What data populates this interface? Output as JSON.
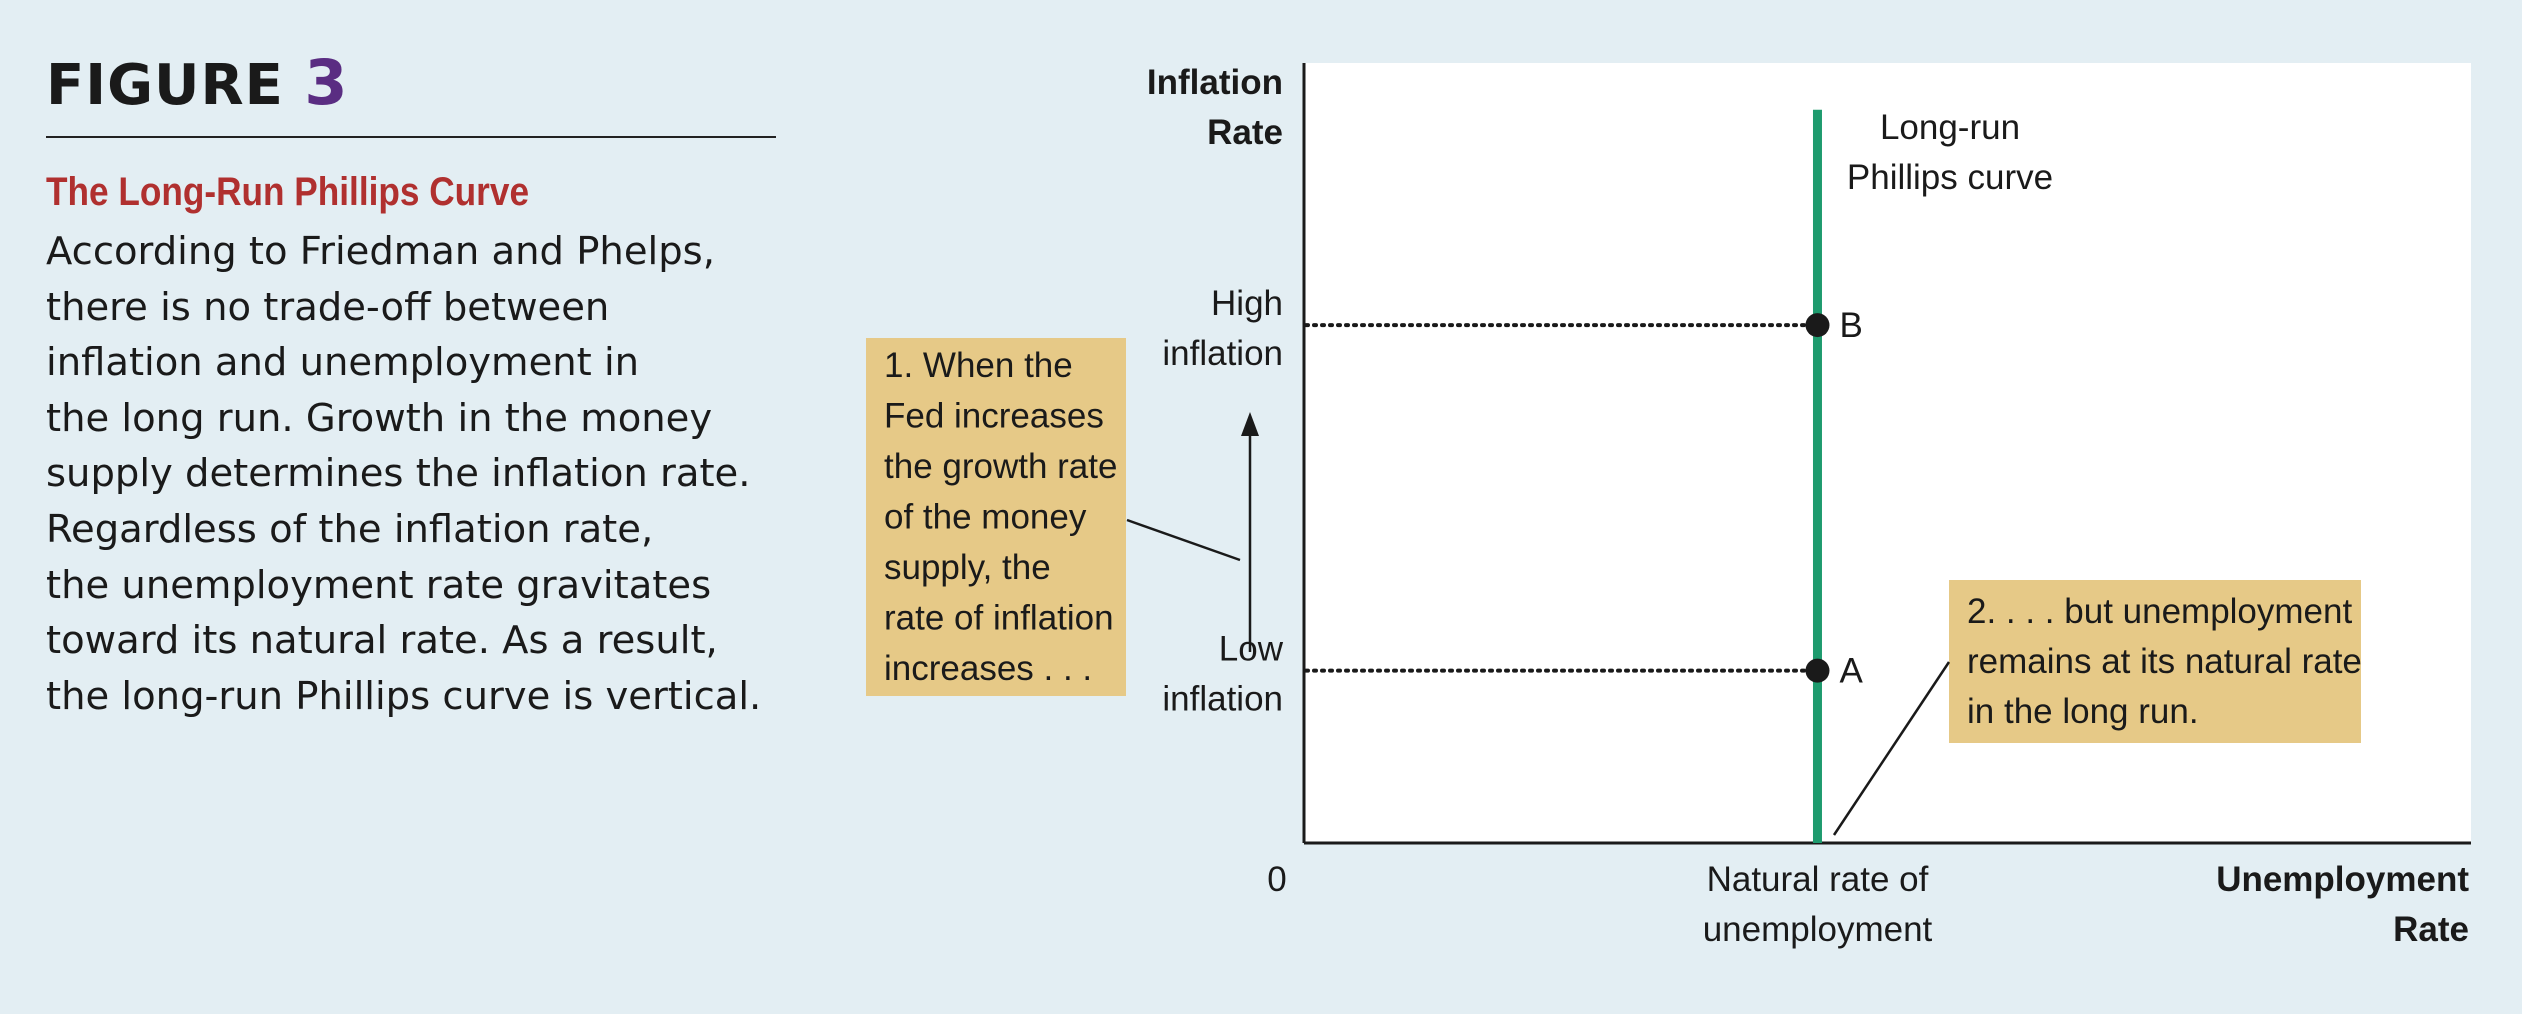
{
  "figure": {
    "prefix": "FIGURE",
    "number": "3"
  },
  "caption": {
    "title": "The Long-Run Phillips Curve",
    "lines": [
      "According to Friedman and Phelps,",
      "there is no trade-off between",
      "inflation and unemployment in",
      "the long run. Growth in the money",
      "supply determines the inflation rate.",
      "Regardless of the inflation rate,",
      "the unemployment rate gravitates",
      "toward its natural rate. As a result,",
      "the long-run Phillips curve is vertical."
    ]
  },
  "colors": {
    "background": "#e3eef3",
    "curve": "#1e9b6e",
    "annotation_box": "#e6c987",
    "title_red": "#b0302f",
    "figure_number": "#5a2d82"
  },
  "chart_data": {
    "type": "line",
    "y_axis_label": [
      "Inflation",
      "Rate"
    ],
    "x_axis_label": [
      "Unemployment",
      "Rate"
    ],
    "origin_label": "0",
    "x_ticks": [
      {
        "lines": [
          "Natural rate of",
          "unemployment"
        ]
      }
    ],
    "y_ticks": [
      {
        "lines": [
          "High",
          "inflation"
        ]
      },
      {
        "lines": [
          "Low",
          "inflation"
        ]
      }
    ],
    "x_range": [
      0,
      1
    ],
    "y_range": [
      0,
      1
    ],
    "natural_rate": 0.44,
    "series": [
      {
        "name": "Long-run Phillips curve",
        "label_lines": [
          "Long-run",
          "Phillips curve"
        ],
        "x": [
          0.44,
          0.44
        ],
        "y": [
          0,
          0.94
        ]
      }
    ],
    "points": [
      {
        "label": "B",
        "x": 0.44,
        "y": 0.664
      },
      {
        "label": "A",
        "x": 0.44,
        "y": 0.221
      }
    ],
    "annotations": [
      {
        "lines": [
          "1. When the",
          "Fed increases",
          "the growth rate",
          "of the money",
          "supply, the",
          "rate of inflation",
          "increases . . ."
        ]
      },
      {
        "lines": [
          "2. . . . but unemployment",
          "remains at its natural rate",
          "in the long run."
        ]
      }
    ],
    "grid": false
  }
}
